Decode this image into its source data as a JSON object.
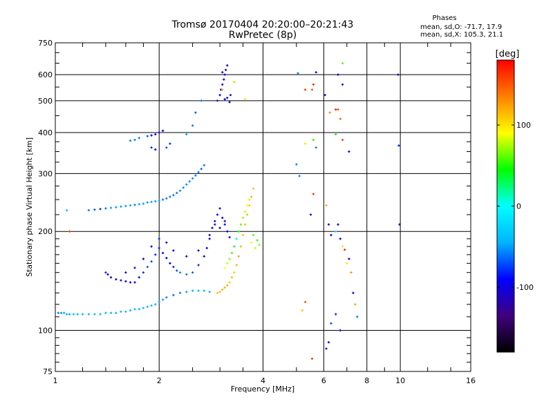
{
  "chart_data": {
    "type": "scatter",
    "title": "Tromsø 20170404 20:20:00–20:21:43",
    "subtitle": "RwPretec (8p)",
    "xlabel": "Frequency [MHz]",
    "ylabel": "Stationary phase Virtual Height [km]",
    "x_scale": "log",
    "y_scale": "log",
    "xlim": [
      1,
      16
    ],
    "ylim": [
      75,
      750
    ],
    "x_ticks": [
      1,
      2,
      4,
      6,
      8,
      10,
      16
    ],
    "x_tick_labels": [
      "1",
      "2",
      "4",
      "6",
      "8",
      "10",
      "16"
    ],
    "y_ticks": [
      75,
      100,
      200,
      300,
      400,
      500,
      600,
      750
    ],
    "y_tick_labels": [
      "75",
      "100",
      "200",
      "300",
      "400",
      "500",
      "600",
      "750"
    ],
    "grid": true,
    "phase_info": {
      "heading": "Phases",
      "o_line": "mean, sd,O: -71.7, 17.9",
      "x_line": "mean, sd,X: 105.3, 21.1"
    },
    "colorbar": {
      "label": "[deg]",
      "range": [
        -180,
        180
      ],
      "tick_values": [
        100,
        0,
        -100
      ],
      "tick_labels": [
        "100",
        "0",
        "-100"
      ],
      "colormap": [
        "#000000",
        "#40007f",
        "#0000ff",
        "#00b4ff",
        "#00ffff",
        "#00ff00",
        "#ffff00",
        "#ff8000",
        "#ff0000"
      ]
    },
    "series": [
      {
        "points": [
          [
            1.02,
            113,
            -60
          ],
          [
            1.04,
            113,
            -55
          ],
          [
            1.06,
            113,
            -50
          ],
          [
            1.08,
            112,
            -45
          ],
          [
            1.1,
            112,
            -45
          ],
          [
            1.13,
            112,
            -40
          ],
          [
            1.16,
            112,
            -40
          ],
          [
            1.2,
            112,
            -40
          ],
          [
            1.25,
            112,
            -40
          ],
          [
            1.3,
            112,
            -40
          ],
          [
            1.35,
            112,
            -40
          ],
          [
            1.4,
            113,
            -40
          ],
          [
            1.45,
            113,
            -40
          ],
          [
            1.5,
            113,
            -40
          ],
          [
            1.55,
            114,
            -40
          ],
          [
            1.6,
            114,
            -40
          ],
          [
            1.65,
            115,
            -40
          ],
          [
            1.7,
            116,
            -40
          ],
          [
            1.75,
            116,
            -40
          ],
          [
            1.8,
            117,
            -40
          ],
          [
            1.85,
            118,
            -40
          ],
          [
            1.9,
            119,
            -40
          ],
          [
            1.95,
            120,
            -40
          ],
          [
            2.0,
            122,
            -45
          ],
          [
            2.05,
            124,
            -50
          ],
          [
            2.1,
            126,
            -55
          ],
          [
            2.2,
            128,
            -60
          ],
          [
            2.3,
            130,
            -60
          ],
          [
            2.4,
            131,
            -50
          ],
          [
            2.5,
            132,
            -40
          ],
          [
            2.6,
            132,
            -40
          ],
          [
            2.7,
            132,
            -40
          ],
          [
            2.8,
            131,
            -45
          ]
        ]
      },
      {
        "points": [
          [
            1.08,
            232,
            -40
          ],
          [
            1.25,
            232,
            -60
          ],
          [
            1.3,
            233,
            -70
          ],
          [
            1.35,
            234,
            -80
          ],
          [
            1.4,
            235,
            -60
          ],
          [
            1.45,
            236,
            -50
          ],
          [
            1.5,
            237,
            -50
          ],
          [
            1.55,
            238,
            -50
          ],
          [
            1.6,
            239,
            -50
          ],
          [
            1.65,
            240,
            -50
          ],
          [
            1.7,
            241,
            -60
          ],
          [
            1.75,
            242,
            -50
          ],
          [
            1.8,
            243,
            -50
          ],
          [
            1.85,
            245,
            -50
          ],
          [
            1.9,
            246,
            -50
          ],
          [
            1.95,
            247,
            -50
          ],
          [
            2.0,
            248,
            -50
          ],
          [
            2.05,
            250,
            -60
          ],
          [
            2.1,
            252,
            -60
          ],
          [
            2.15,
            255,
            -60
          ],
          [
            2.2,
            258,
            -60
          ],
          [
            2.25,
            262,
            -60
          ],
          [
            2.3,
            266,
            -55
          ],
          [
            2.35,
            272,
            -55
          ],
          [
            2.4,
            278,
            -55
          ],
          [
            2.45,
            284,
            -55
          ],
          [
            2.5,
            290,
            -55
          ],
          [
            2.55,
            296,
            -60
          ],
          [
            2.6,
            303,
            -60
          ],
          [
            2.65,
            310,
            -65
          ],
          [
            2.7,
            318,
            -60
          ]
        ]
      },
      {
        "points": [
          [
            1.4,
            150,
            -80
          ],
          [
            1.42,
            148,
            -100
          ],
          [
            1.45,
            145,
            -120
          ],
          [
            1.5,
            143,
            -110
          ],
          [
            1.55,
            142,
            -120
          ],
          [
            1.6,
            141,
            -100
          ],
          [
            1.65,
            140,
            -110
          ],
          [
            1.7,
            140,
            -100
          ],
          [
            1.75,
            145,
            -90
          ],
          [
            1.8,
            150,
            -80
          ],
          [
            1.85,
            156,
            -70
          ],
          [
            1.9,
            162,
            -75
          ],
          [
            1.95,
            170,
            -80
          ],
          [
            2.0,
            178,
            -85
          ],
          [
            2.05,
            172,
            -90
          ],
          [
            2.1,
            166,
            -95
          ],
          [
            2.15,
            160,
            -90
          ],
          [
            2.2,
            156,
            -80
          ],
          [
            2.25,
            152,
            -70
          ],
          [
            2.3,
            150,
            -60
          ],
          [
            2.4,
            148,
            -60
          ],
          [
            2.5,
            150,
            -70
          ],
          [
            2.6,
            158,
            -80
          ],
          [
            2.7,
            168,
            -90
          ],
          [
            2.75,
            178,
            -95
          ],
          [
            2.8,
            190,
            -100
          ],
          [
            2.85,
            205,
            -95
          ],
          [
            2.9,
            215,
            -90
          ],
          [
            2.95,
            225,
            -100
          ],
          [
            3.0,
            235,
            -110
          ],
          [
            3.05,
            220,
            -100
          ],
          [
            3.1,
            210,
            -90
          ],
          [
            3.15,
            200,
            -95
          ],
          [
            3.2,
            192,
            -100
          ]
        ]
      },
      {
        "points": [
          [
            1.6,
            150,
            -100
          ],
          [
            1.7,
            155,
            -110
          ],
          [
            1.8,
            165,
            -100
          ],
          [
            1.9,
            180,
            -90
          ],
          [
            2.0,
            190,
            -80
          ],
          [
            2.1,
            185,
            -85
          ],
          [
            2.2,
            175,
            -95
          ],
          [
            2.4,
            168,
            -100
          ],
          [
            2.6,
            175,
            -105
          ],
          [
            2.8,
            195,
            -110
          ],
          [
            2.9,
            210,
            -120
          ],
          [
            3.0,
            205,
            -115
          ],
          [
            3.1,
            215,
            -105
          ]
        ]
      },
      {
        "points": [
          [
            1.75,
            385,
            -60
          ],
          [
            1.85,
            390,
            -70
          ],
          [
            1.9,
            392,
            -90
          ],
          [
            1.95,
            395,
            -100
          ],
          [
            2.0,
            400,
            -100
          ],
          [
            2.05,
            405,
            -90
          ],
          [
            1.9,
            360,
            -80
          ],
          [
            1.95,
            355,
            -100
          ],
          [
            2.1,
            360,
            -70
          ],
          [
            2.15,
            370,
            -80
          ],
          [
            1.65,
            378,
            -60
          ],
          [
            1.7,
            380,
            -60
          ],
          [
            2.4,
            395,
            -50
          ],
          [
            2.5,
            420,
            -60
          ],
          [
            2.55,
            460,
            -70
          ],
          [
            2.65,
            500,
            -60
          ]
        ]
      },
      {
        "points": [
          [
            2.95,
            500,
            -90
          ],
          [
            3.0,
            520,
            -100
          ],
          [
            3.02,
            540,
            -100
          ],
          [
            3.05,
            560,
            -110
          ],
          [
            3.08,
            580,
            -100
          ],
          [
            3.1,
            600,
            -100
          ],
          [
            3.12,
            620,
            -110
          ],
          [
            3.15,
            640,
            -100
          ],
          [
            3.1,
            505,
            -95
          ],
          [
            3.15,
            510,
            -100
          ],
          [
            3.2,
            495,
            -90
          ],
          [
            3.22,
            520,
            -105
          ],
          [
            3.05,
            610,
            -95
          ]
        ]
      },
      {
        "points": [
          [
            2.95,
            130,
            110
          ],
          [
            3.0,
            131,
            115
          ],
          [
            3.05,
            133,
            120
          ],
          [
            3.1,
            135,
            115
          ],
          [
            3.15,
            137,
            120
          ],
          [
            3.2,
            140,
            110
          ],
          [
            3.25,
            145,
            115
          ],
          [
            3.3,
            150,
            110
          ],
          [
            3.35,
            158,
            115
          ],
          [
            3.4,
            168,
            120
          ],
          [
            3.45,
            180,
            115
          ],
          [
            3.5,
            195,
            110
          ],
          [
            3.55,
            210,
            115
          ],
          [
            3.6,
            225,
            115
          ],
          [
            3.65,
            240,
            110
          ],
          [
            3.7,
            255,
            115
          ],
          [
            3.75,
            270,
            110
          ]
        ]
      },
      {
        "points": [
          [
            3.1,
            155,
            90
          ],
          [
            3.15,
            160,
            80
          ],
          [
            3.2,
            165,
            70
          ],
          [
            3.25,
            172,
            60
          ],
          [
            3.3,
            180,
            30
          ],
          [
            3.35,
            190,
            10
          ],
          [
            3.4,
            200,
            40
          ],
          [
            3.45,
            210,
            60
          ],
          [
            3.5,
            220,
            70
          ],
          [
            3.55,
            230,
            80
          ],
          [
            3.6,
            240,
            90
          ],
          [
            3.65,
            250,
            100
          ],
          [
            3.7,
            185,
            90
          ],
          [
            3.8,
            178,
            80
          ],
          [
            3.9,
            182,
            70
          ],
          [
            3.75,
            195,
            60
          ],
          [
            3.85,
            188,
            55
          ]
        ]
      },
      {
        "points": [
          [
            1.1,
            200,
            160
          ],
          [
            3.05,
            540,
            120
          ],
          [
            3.3,
            570,
            110
          ],
          [
            3.55,
            505,
            100
          ],
          [
            5.05,
            606,
            -60
          ],
          [
            5.3,
            540,
            160
          ],
          [
            5.55,
            540,
            150
          ],
          [
            5.6,
            560,
            170
          ],
          [
            5.7,
            610,
            -100
          ],
          [
            6.05,
            520,
            -110
          ],
          [
            6.25,
            460,
            130
          ],
          [
            6.5,
            470,
            170
          ],
          [
            6.6,
            470,
            150
          ],
          [
            6.7,
            440,
            140
          ],
          [
            6.8,
            380,
            160
          ],
          [
            7.1,
            350,
            -100
          ],
          [
            6.8,
            560,
            -90
          ],
          [
            6.6,
            600,
            -100
          ],
          [
            6.5,
            395,
            40
          ],
          [
            5.6,
            380,
            50
          ],
          [
            5.3,
            370,
            100
          ],
          [
            5.7,
            360,
            -60
          ],
          [
            5.0,
            320,
            -60
          ],
          [
            5.1,
            295,
            -60
          ],
          [
            5.5,
            225,
            -100
          ],
          [
            5.6,
            260,
            160
          ],
          [
            6.8,
            650,
            60
          ],
          [
            6.1,
            240,
            120
          ],
          [
            6.2,
            210,
            -120
          ],
          [
            6.3,
            195,
            -90
          ],
          [
            6.5,
            200,
            -20
          ],
          [
            6.6,
            210,
            -90
          ],
          [
            6.7,
            190,
            -100
          ],
          [
            6.8,
            180,
            80
          ],
          [
            6.9,
            176,
            170
          ],
          [
            7.0,
            160,
            100
          ],
          [
            7.1,
            165,
            -110
          ],
          [
            7.2,
            150,
            130
          ],
          [
            7.3,
            130,
            -90
          ],
          [
            7.4,
            120,
            120
          ],
          [
            7.5,
            110,
            -60
          ],
          [
            5.2,
            115,
            110
          ],
          [
            5.3,
            122,
            150
          ],
          [
            6.3,
            105,
            -70
          ],
          [
            6.5,
            112,
            -80
          ],
          [
            6.7,
            100,
            -90
          ],
          [
            5.55,
            82,
            160
          ],
          [
            6.1,
            88,
            -110
          ],
          [
            6.2,
            92,
            -100
          ],
          [
            9.85,
            600,
            -100
          ],
          [
            9.9,
            365,
            -80
          ],
          [
            9.95,
            210,
            -90
          ]
        ]
      }
    ]
  }
}
